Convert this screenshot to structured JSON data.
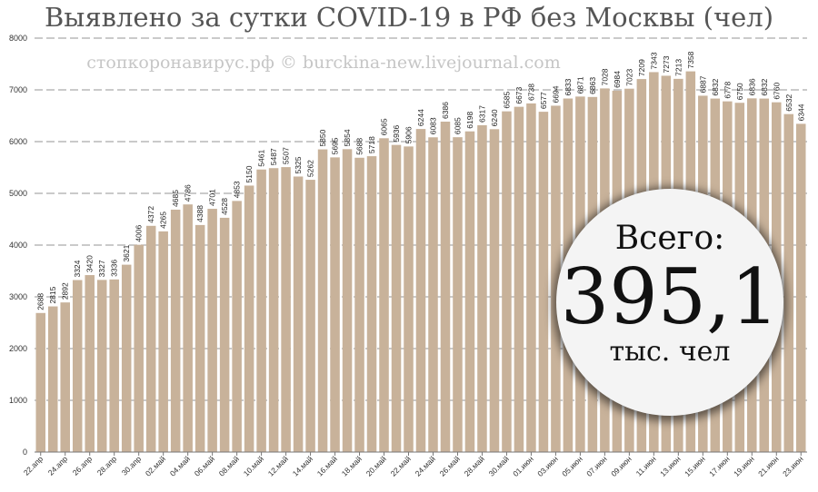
{
  "chart_data": {
    "type": "bar",
    "title": "Выявлено за сутки COVID-19 в РФ без Москвы (чел)",
    "watermark": "стопкоронавирус.рф © burckina-new.livejournal.com",
    "xlabel": "",
    "ylabel": "",
    "ylim": [
      0,
      8000
    ],
    "yticks": [
      0,
      1000,
      2000,
      3000,
      4000,
      5000,
      6000,
      7000,
      8000
    ],
    "grid": true,
    "bar_color": "#c8b29a",
    "categories": [
      "22.апр",
      "23.апр",
      "24.апр",
      "25.апр",
      "26.апр",
      "27.апр",
      "28.апр",
      "29.апр",
      "30.апр",
      "01.май",
      "02.май",
      "03.май",
      "04.май",
      "05.май",
      "06.май",
      "07.май",
      "08.май",
      "09.май",
      "10.май",
      "11.май",
      "12.май",
      "13.май",
      "14.май",
      "15.май",
      "16.май",
      "17.май",
      "18.май",
      "19.май",
      "20.май",
      "21.май",
      "22.май",
      "23.май",
      "24.май",
      "25.май",
      "26.май",
      "27.май",
      "28.май",
      "29.май",
      "30.май",
      "31.май",
      "01.июн",
      "02.июн",
      "03.июн",
      "04.июн",
      "05.июн",
      "06.июн",
      "07.июн",
      "08.июн",
      "09.июн",
      "10.июн",
      "11.июн",
      "12.июн",
      "13.июн",
      "14.июн",
      "15.июн",
      "16.июн",
      "17.июн",
      "18.июн",
      "19.июн",
      "20.июн",
      "21.июн",
      "22.июн",
      "23.июн"
    ],
    "tick_labels": [
      "22.апр",
      "24.апр",
      "26.апр",
      "28.апр",
      "30.апр",
      "02.май",
      "04.май",
      "06.май",
      "08.май",
      "10.май",
      "12.май",
      "14.май",
      "16.май",
      "18.май",
      "20.май",
      "22.май",
      "24.май",
      "26.май",
      "28.май",
      "30.май",
      "01.июн",
      "03.июн",
      "05.июн",
      "07.июн",
      "09.июн",
      "11.июн",
      "13.июн",
      "15.июн",
      "17.июн",
      "19.июн",
      "21.июн",
      "23.июн"
    ],
    "values": [
      2688,
      2815,
      2892,
      3324,
      3420,
      3327,
      3336,
      3621,
      4006,
      4372,
      4265,
      4685,
      4786,
      4388,
      4701,
      4528,
      4853,
      5150,
      5461,
      5487,
      5507,
      5325,
      5262,
      5850,
      5695,
      5854,
      5688,
      5718,
      6065,
      5936,
      5906,
      6244,
      6083,
      6386,
      6085,
      6198,
      6317,
      6240,
      6585,
      6673,
      6738,
      6577,
      6694,
      6833,
      6871,
      6863,
      7028,
      6984,
      7023,
      7209,
      7343,
      7273,
      7213,
      7358,
      6887,
      6832,
      6778,
      6750,
      6836,
      6832,
      6760,
      6532,
      6344
    ]
  },
  "total": {
    "label": "Всего:",
    "value": "395,1",
    "unit": "тыс. чел"
  }
}
